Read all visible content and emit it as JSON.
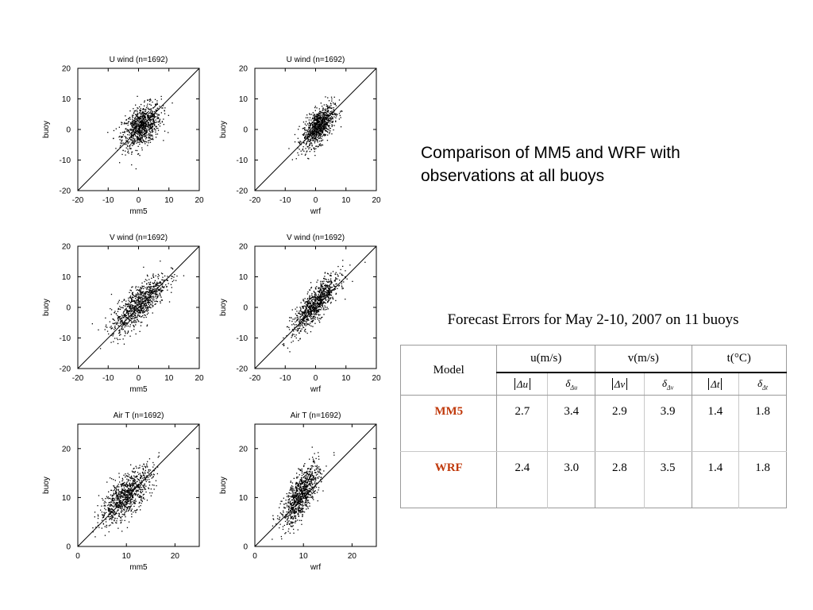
{
  "heading": "Comparison of MM5 and WRF with observations at all buoys",
  "table": {
    "caption": "Forecast Errors for May 2-10, 2007 on 11 buoys",
    "model_header": "Model",
    "groups": [
      "u(m/s)",
      "v(m/s)",
      "t(°C)"
    ],
    "subheaders": [
      {
        "abs": "Δu",
        "delta": "Δu"
      },
      {
        "abs": "Δv",
        "delta": "Δv"
      },
      {
        "abs": "Δt",
        "delta": "Δt"
      }
    ],
    "rows": [
      {
        "model": "MM5",
        "values": [
          "2.7",
          "3.4",
          "2.9",
          "3.9",
          "1.4",
          "1.8"
        ]
      },
      {
        "model": "WRF",
        "values": [
          "2.4",
          "3.0",
          "2.8",
          "3.5",
          "1.4",
          "1.8"
        ]
      }
    ]
  },
  "chart_data": [
    {
      "type": "scatter",
      "title": "U wind (n=1692)",
      "xlabel": "mm5",
      "ylabel": "buoy",
      "xlim": [
        -20,
        20
      ],
      "ylim": [
        -20,
        20
      ],
      "ticks": [
        -20,
        -10,
        0,
        10,
        20
      ],
      "n": 1692,
      "center": [
        1,
        1
      ],
      "spread": [
        3.2,
        3.6
      ],
      "corr": 0.45,
      "one_to_one_line": true
    },
    {
      "type": "scatter",
      "title": "U wind (n=1692)",
      "xlabel": "wrf",
      "ylabel": "buoy",
      "xlim": [
        -20,
        20
      ],
      "ylim": [
        -20,
        20
      ],
      "ticks": [
        -20,
        -10,
        0,
        10,
        20
      ],
      "n": 1692,
      "center": [
        1,
        1
      ],
      "spread": [
        2.6,
        3.4
      ],
      "corr": 0.6,
      "one_to_one_line": true
    },
    {
      "type": "scatter",
      "title": "V wind (n=1692)",
      "xlabel": "mm5",
      "ylabel": "buoy",
      "xlim": [
        -20,
        20
      ],
      "ylim": [
        -20,
        20
      ],
      "ticks": [
        -20,
        -10,
        0,
        10,
        20
      ],
      "n": 1692,
      "center": [
        0,
        1
      ],
      "spread": [
        4.5,
        4.8
      ],
      "corr": 0.78,
      "one_to_one_line": true
    },
    {
      "type": "scatter",
      "title": "V wind (n=1692)",
      "xlabel": "wrf",
      "ylabel": "buoy",
      "xlim": [
        -20,
        20
      ],
      "ylim": [
        -20,
        20
      ],
      "ticks": [
        -20,
        -10,
        0,
        10,
        20
      ],
      "n": 1692,
      "center": [
        0,
        1
      ],
      "spread": [
        3.8,
        4.6
      ],
      "corr": 0.82,
      "one_to_one_line": true
    },
    {
      "type": "scatter",
      "title": "Air T (n=1692)",
      "xlabel": "mm5",
      "ylabel": "buoy",
      "xlim": [
        0,
        25
      ],
      "ylim": [
        0,
        25
      ],
      "ticks": [
        0,
        10,
        20
      ],
      "n": 1692,
      "center": [
        10,
        10.5
      ],
      "spread": [
        2.7,
        2.9
      ],
      "corr": 0.72,
      "one_to_one_line": true
    },
    {
      "type": "scatter",
      "title": "Air T (n=1692)",
      "xlabel": "wrf",
      "ylabel": "buoy",
      "xlim": [
        0,
        25
      ],
      "ylim": [
        0,
        25
      ],
      "ticks": [
        0,
        10,
        20
      ],
      "n": 1692,
      "center": [
        9.5,
        10.5
      ],
      "spread": [
        1.9,
        3.1
      ],
      "corr": 0.72,
      "one_to_one_line": true
    }
  ]
}
